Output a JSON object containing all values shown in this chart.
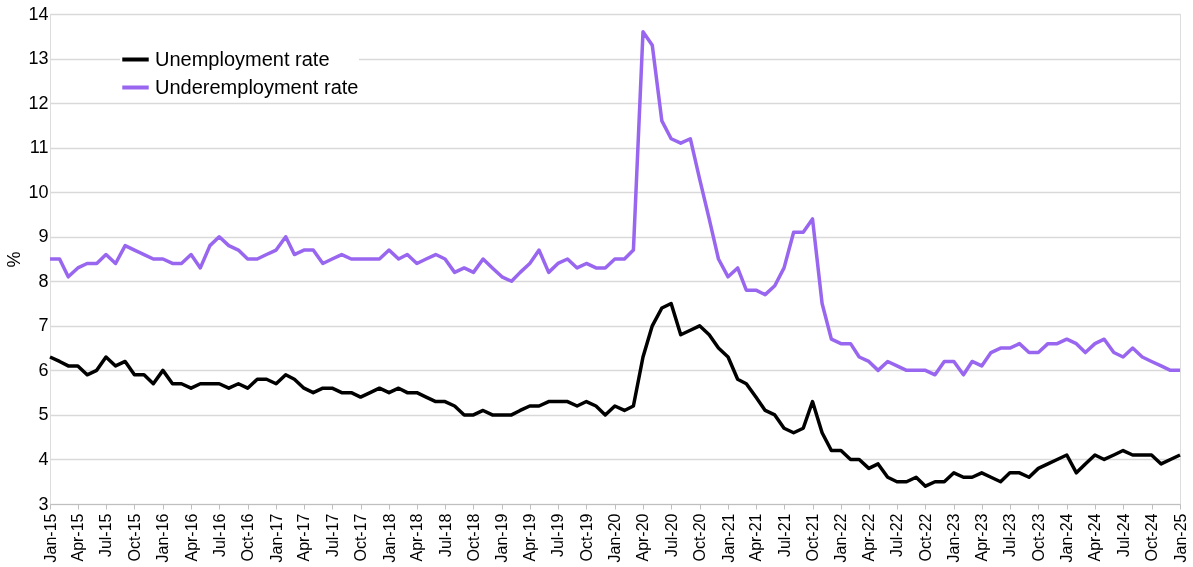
{
  "chart_data": {
    "type": "line",
    "ylabel": "%",
    "x": [
      "2015-01",
      "2015-02",
      "2015-03",
      "2015-04",
      "2015-05",
      "2015-06",
      "2015-07",
      "2015-08",
      "2015-09",
      "2015-10",
      "2015-11",
      "2015-12",
      "2016-01",
      "2016-02",
      "2016-03",
      "2016-04",
      "2016-05",
      "2016-06",
      "2016-07",
      "2016-08",
      "2016-09",
      "2016-10",
      "2016-11",
      "2016-12",
      "2017-01",
      "2017-02",
      "2017-03",
      "2017-04",
      "2017-05",
      "2017-06",
      "2017-07",
      "2017-08",
      "2017-09",
      "2017-10",
      "2017-11",
      "2017-12",
      "2018-01",
      "2018-02",
      "2018-03",
      "2018-04",
      "2018-05",
      "2018-06",
      "2018-07",
      "2018-08",
      "2018-09",
      "2018-10",
      "2018-11",
      "2018-12",
      "2019-01",
      "2019-02",
      "2019-03",
      "2019-04",
      "2019-05",
      "2019-06",
      "2019-07",
      "2019-08",
      "2019-09",
      "2019-10",
      "2019-11",
      "2019-12",
      "2020-01",
      "2020-02",
      "2020-03",
      "2020-04",
      "2020-05",
      "2020-06",
      "2020-07",
      "2020-08",
      "2020-09",
      "2020-10",
      "2020-11",
      "2020-12",
      "2021-01",
      "2021-02",
      "2021-03",
      "2021-04",
      "2021-05",
      "2021-06",
      "2021-07",
      "2021-08",
      "2021-09",
      "2021-10",
      "2021-11",
      "2021-12",
      "2022-01",
      "2022-02",
      "2022-03",
      "2022-04",
      "2022-05",
      "2022-06",
      "2022-07",
      "2022-08",
      "2022-09",
      "2022-10",
      "2022-11",
      "2022-12",
      "2023-01",
      "2023-02",
      "2023-03",
      "2023-04",
      "2023-05",
      "2023-06",
      "2023-07",
      "2023-08",
      "2023-09",
      "2023-10",
      "2023-11",
      "2023-12",
      "2024-01",
      "2024-02",
      "2024-03",
      "2024-04",
      "2024-05",
      "2024-06",
      "2024-07",
      "2024-08",
      "2024-09",
      "2024-10",
      "2024-11",
      "2024-12",
      "2025-01"
    ],
    "xlim": [
      "2015-01",
      "2025-01"
    ],
    "xticks": [
      {
        "value": "2015-01",
        "label": "Jan-15"
      },
      {
        "value": "2015-04",
        "label": "Apr-15"
      },
      {
        "value": "2015-07",
        "label": "Jul-15"
      },
      {
        "value": "2015-10",
        "label": "Oct-15"
      },
      {
        "value": "2016-01",
        "label": "Jan-16"
      },
      {
        "value": "2016-04",
        "label": "Apr-16"
      },
      {
        "value": "2016-07",
        "label": "Jul-16"
      },
      {
        "value": "2016-10",
        "label": "Oct-16"
      },
      {
        "value": "2017-01",
        "label": "Jan-17"
      },
      {
        "value": "2017-04",
        "label": "Apr-17"
      },
      {
        "value": "2017-07",
        "label": "Jul-17"
      },
      {
        "value": "2017-10",
        "label": "Oct-17"
      },
      {
        "value": "2018-01",
        "label": "Jan-18"
      },
      {
        "value": "2018-04",
        "label": "Apr-18"
      },
      {
        "value": "2018-07",
        "label": "Jul-18"
      },
      {
        "value": "2018-10",
        "label": "Oct-18"
      },
      {
        "value": "2019-01",
        "label": "Jan-19"
      },
      {
        "value": "2019-04",
        "label": "Apr-19"
      },
      {
        "value": "2019-07",
        "label": "Jul-19"
      },
      {
        "value": "2019-10",
        "label": "Oct-19"
      },
      {
        "value": "2020-01",
        "label": "Jan-20"
      },
      {
        "value": "2020-04",
        "label": "Apr-20"
      },
      {
        "value": "2020-07",
        "label": "Jul-20"
      },
      {
        "value": "2020-10",
        "label": "Oct-20"
      },
      {
        "value": "2021-01",
        "label": "Jan-21"
      },
      {
        "value": "2021-04",
        "label": "Apr-21"
      },
      {
        "value": "2021-07",
        "label": "Jul-21"
      },
      {
        "value": "2021-10",
        "label": "Oct-21"
      },
      {
        "value": "2022-01",
        "label": "Jan-22"
      },
      {
        "value": "2022-04",
        "label": "Apr-22"
      },
      {
        "value": "2022-07",
        "label": "Jul-22"
      },
      {
        "value": "2022-10",
        "label": "Oct-22"
      },
      {
        "value": "2023-01",
        "label": "Jan-23"
      },
      {
        "value": "2023-04",
        "label": "Apr-23"
      },
      {
        "value": "2023-07",
        "label": "Jul-23"
      },
      {
        "value": "2023-10",
        "label": "Oct-23"
      },
      {
        "value": "2024-01",
        "label": "Jan-24"
      },
      {
        "value": "2024-04",
        "label": "Apr-24"
      },
      {
        "value": "2024-07",
        "label": "Jul-24"
      },
      {
        "value": "2024-10",
        "label": "Oct-24"
      },
      {
        "value": "2025-01",
        "label": "Jan-25"
      }
    ],
    "ylim": [
      3,
      14
    ],
    "yticks": [
      3,
      4,
      5,
      6,
      7,
      8,
      9,
      10,
      11,
      12,
      13,
      14
    ],
    "grid": "y",
    "legend": "top left",
    "marker": "none",
    "line_style": "solid",
    "series": [
      {
        "name": "Unemployment rate",
        "color": "#000000",
        "values": [
          6.3,
          6.2,
          6.1,
          6.1,
          5.9,
          6.0,
          6.3,
          6.1,
          6.2,
          5.9,
          5.9,
          5.7,
          6.0,
          5.7,
          5.7,
          5.6,
          5.7,
          5.7,
          5.7,
          5.6,
          5.7,
          5.6,
          5.8,
          5.8,
          5.7,
          5.9,
          5.8,
          5.6,
          5.5,
          5.6,
          5.6,
          5.5,
          5.5,
          5.4,
          5.5,
          5.6,
          5.5,
          5.6,
          5.5,
          5.5,
          5.4,
          5.3,
          5.3,
          5.2,
          5.0,
          5.0,
          5.1,
          5.0,
          5.0,
          5.0,
          5.1,
          5.2,
          5.2,
          5.3,
          5.3,
          5.3,
          5.2,
          5.3,
          5.2,
          5.0,
          5.2,
          5.1,
          5.2,
          6.3,
          7.0,
          7.4,
          7.5,
          6.8,
          6.9,
          7.0,
          6.8,
          6.5,
          6.3,
          5.8,
          5.7,
          5.4,
          5.1,
          5.0,
          4.7,
          4.6,
          4.7,
          5.3,
          4.6,
          4.2,
          4.2,
          4.0,
          4.0,
          3.8,
          3.9,
          3.6,
          3.5,
          3.5,
          3.6,
          3.4,
          3.5,
          3.5,
          3.7,
          3.6,
          3.6,
          3.7,
          3.6,
          3.5,
          3.7,
          3.7,
          3.6,
          3.8,
          3.9,
          4.0,
          4.1,
          3.7,
          3.9,
          4.1,
          4.0,
          4.1,
          4.2,
          4.1,
          4.1,
          4.1,
          3.9,
          4.0,
          4.1
        ]
      },
      {
        "name": "Underemployment rate",
        "color": "#9966f0",
        "values": [
          8.5,
          8.5,
          8.1,
          8.3,
          8.4,
          8.4,
          8.6,
          8.4,
          8.8,
          8.7,
          8.6,
          8.5,
          8.5,
          8.4,
          8.4,
          8.6,
          8.3,
          8.8,
          9.0,
          8.8,
          8.7,
          8.5,
          8.5,
          8.6,
          8.7,
          9.0,
          8.6,
          8.7,
          8.7,
          8.4,
          8.5,
          8.6,
          8.5,
          8.5,
          8.5,
          8.5,
          8.7,
          8.5,
          8.6,
          8.4,
          8.5,
          8.6,
          8.5,
          8.2,
          8.3,
          8.2,
          8.5,
          8.3,
          8.1,
          8.0,
          8.2,
          8.4,
          8.7,
          8.2,
          8.4,
          8.5,
          8.3,
          8.4,
          8.3,
          8.3,
          8.5,
          8.5,
          8.7,
          13.6,
          13.3,
          11.6,
          11.2,
          11.1,
          11.2,
          10.3,
          9.4,
          8.5,
          8.1,
          8.3,
          7.8,
          7.8,
          7.7,
          7.9,
          8.3,
          9.1,
          9.1,
          9.4,
          7.5,
          6.7,
          6.6,
          6.6,
          6.3,
          6.2,
          6.0,
          6.2,
          6.1,
          6.0,
          6.0,
          6.0,
          5.9,
          6.2,
          6.2,
          5.9,
          6.2,
          6.1,
          6.4,
          6.5,
          6.5,
          6.6,
          6.4,
          6.4,
          6.6,
          6.6,
          6.7,
          6.6,
          6.4,
          6.6,
          6.7,
          6.4,
          6.3,
          6.5,
          6.3,
          6.2,
          6.1,
          6.0,
          6.0
        ]
      }
    ]
  }
}
